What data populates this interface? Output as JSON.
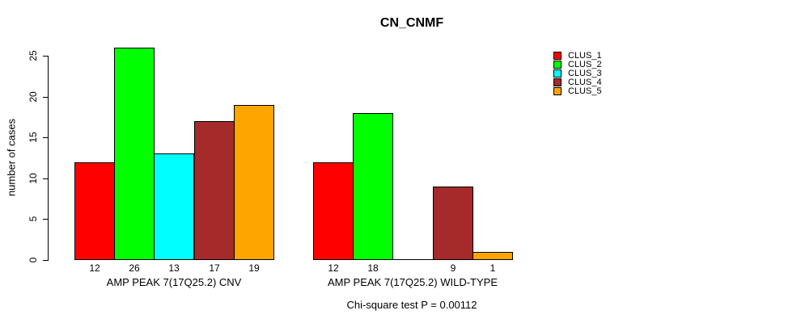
{
  "chart_data": {
    "type": "bar",
    "title": "CN_CNMF",
    "ylabel": "number of cases",
    "xlabel": "",
    "ylim": [
      0,
      25
    ],
    "yticks": [
      0,
      5,
      10,
      15,
      20,
      25
    ],
    "grid": false,
    "legend_position": "right-top",
    "categories": [
      "AMP PEAK 7(17Q25.2) CNV",
      "AMP PEAK 7(17Q25.2) WILD-TYPE"
    ],
    "series": [
      {
        "name": "CLUS_1",
        "color": "#FF0000",
        "values": [
          12,
          12
        ]
      },
      {
        "name": "CLUS_2",
        "color": "#00FF00",
        "values": [
          26,
          18
        ]
      },
      {
        "name": "CLUS_3",
        "color": "#00FFFF",
        "values": [
          13,
          0
        ]
      },
      {
        "name": "CLUS_4",
        "color": "#A52A2A",
        "values": [
          17,
          9
        ]
      },
      {
        "name": "CLUS_5",
        "color": "#FFA500",
        "values": [
          19,
          1
        ]
      }
    ],
    "bar_value_labels_shown": true,
    "zero_value_label_hidden": true,
    "note": "Chi-square test P = 0.00112"
  }
}
